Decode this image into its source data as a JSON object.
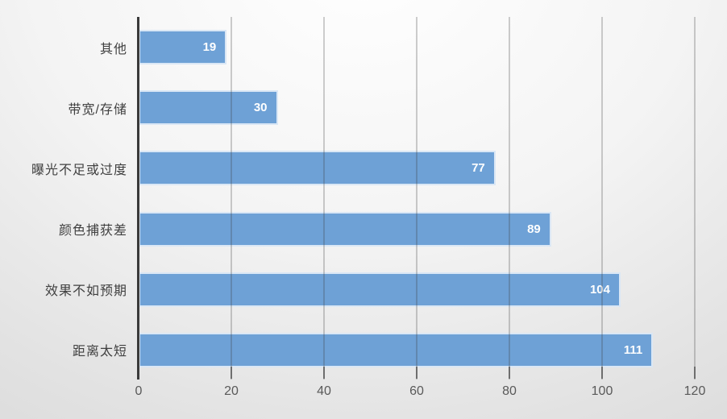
{
  "chart_data": {
    "type": "bar",
    "orientation": "horizontal",
    "title": "",
    "xlabel": "",
    "ylabel": "",
    "categories": [
      "其他",
      "带宽/存储",
      "曝光不足或过度",
      "颜色捕获差",
      "效果不如预期",
      "距离太短"
    ],
    "values": [
      19,
      30,
      77,
      89,
      104,
      111
    ],
    "x_ticks": [
      0,
      20,
      40,
      60,
      80,
      100,
      120
    ],
    "xlim": [
      0,
      120
    ],
    "grid": "vertical-major",
    "legend": "none",
    "data_labels": "inside-end",
    "colors": {
      "bar_fill": "#6EA1D6",
      "bar_border": "#FFFFFF",
      "axis_line": "#3A3A3A",
      "tick_mark": "#6E6E6E",
      "tick_label": "#595959",
      "category_label": "#404040",
      "value_label": "#FFFFFF",
      "gridline": "#ABABAB"
    }
  }
}
